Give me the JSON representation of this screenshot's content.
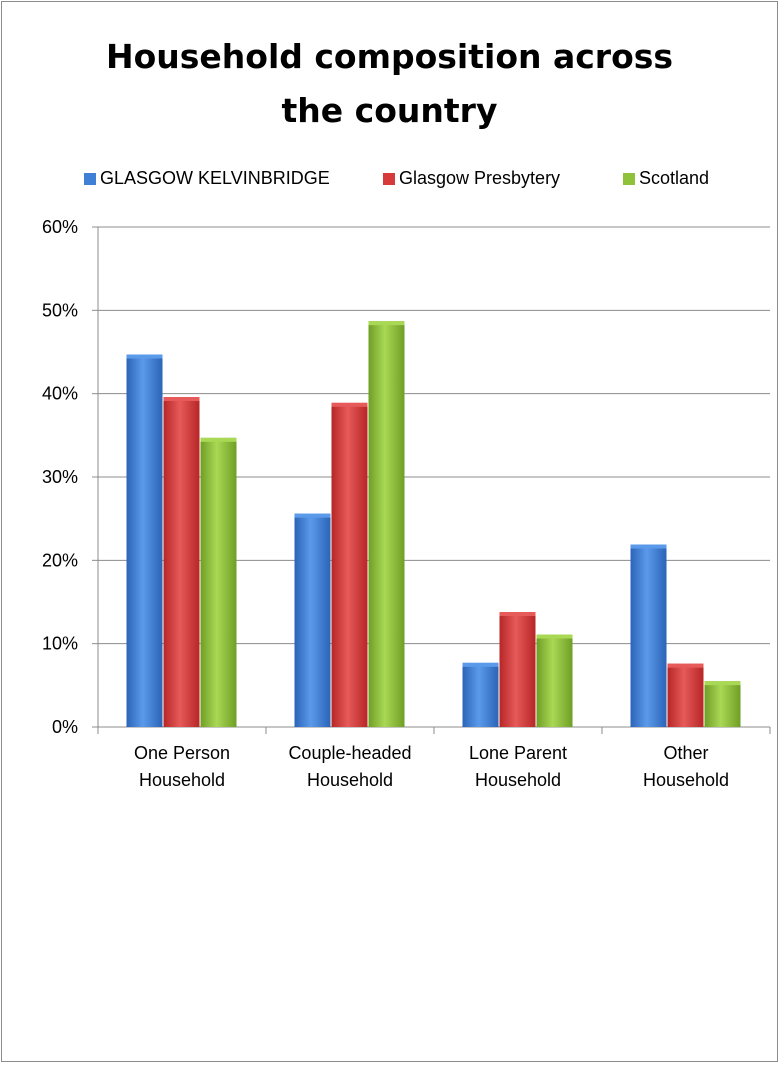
{
  "chart_data": {
    "type": "bar",
    "title_lines": [
      "Household composition across",
      "the country"
    ],
    "categories": [
      [
        "One Person",
        "Household"
      ],
      [
        "Couple-headed",
        "Household"
      ],
      [
        "Lone Parent",
        "Household"
      ],
      [
        "Other",
        "Household"
      ]
    ],
    "series": [
      {
        "name": "GLASGOW KELVINBRIDGE",
        "color": "#3f7fd6",
        "values": [
          44.7,
          25.6,
          7.7,
          21.9
        ]
      },
      {
        "name": "Glasgow Presbytery",
        "color": "#d63a3a",
        "values": [
          39.6,
          38.9,
          13.8,
          7.6
        ]
      },
      {
        "name": "Scotland",
        "color": "#8fc23a",
        "values": [
          34.7,
          48.7,
          11.1,
          5.5
        ]
      }
    ],
    "ylim": [
      0,
      60
    ],
    "yticks": [
      "0%",
      "10%",
      "20%",
      "30%",
      "40%",
      "50%",
      "60%"
    ],
    "grid": true,
    "legend_position": "top"
  }
}
